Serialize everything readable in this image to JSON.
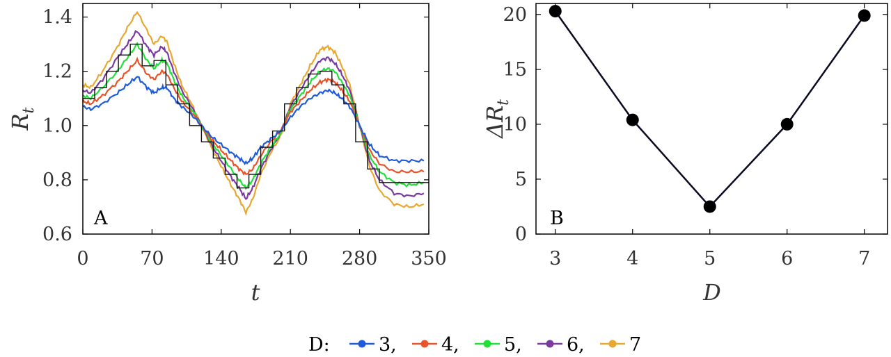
{
  "chart_data": [
    {
      "panel": "A",
      "type": "line",
      "xlabel": "t",
      "ylabel_main": "R",
      "ylabel_sub": "t",
      "xlim": [
        0,
        350
      ],
      "ylim": [
        0.6,
        1.45
      ],
      "xticks": [
        0,
        70,
        140,
        210,
        280,
        350
      ],
      "xtick_labels": [
        "0",
        "70",
        "140",
        "210",
        "280",
        "350"
      ],
      "yticks": [
        0.6,
        0.8,
        1.0,
        1.2,
        1.4
      ],
      "ytick_labels": [
        "0.6",
        "0.8",
        "1.0",
        "1.2",
        "1.4"
      ],
      "grid": false,
      "x": [
        0,
        8,
        20,
        35,
        45,
        55,
        65,
        72,
        80,
        85,
        92,
        100,
        110,
        120,
        130,
        140,
        150,
        158,
        165,
        172,
        180,
        190,
        200,
        210,
        220,
        230,
        240,
        248,
        255,
        262,
        270,
        280,
        290,
        300,
        315,
        330,
        345
      ],
      "series": [
        {
          "name": "3",
          "color": "#1f5bd8",
          "values": [
            1.07,
            1.06,
            1.08,
            1.12,
            1.15,
            1.18,
            1.14,
            1.12,
            1.14,
            1.14,
            1.1,
            1.07,
            1.04,
            1.0,
            0.96,
            0.93,
            0.9,
            0.88,
            0.86,
            0.88,
            0.92,
            0.95,
            0.98,
            1.03,
            1.07,
            1.1,
            1.12,
            1.13,
            1.12,
            1.1,
            1.07,
            1.0,
            0.93,
            0.89,
            0.87,
            0.87,
            0.87
          ]
        },
        {
          "name": "4",
          "color": "#e8532a",
          "values": [
            1.09,
            1.08,
            1.11,
            1.16,
            1.2,
            1.24,
            1.19,
            1.17,
            1.2,
            1.19,
            1.14,
            1.09,
            1.05,
            1.0,
            0.95,
            0.91,
            0.87,
            0.84,
            0.82,
            0.84,
            0.89,
            0.94,
            0.98,
            1.05,
            1.09,
            1.13,
            1.16,
            1.17,
            1.16,
            1.13,
            1.09,
            1.0,
            0.91,
            0.86,
            0.83,
            0.83,
            0.83
          ]
        },
        {
          "name": "5",
          "color": "#22e03a",
          "values": [
            1.11,
            1.1,
            1.14,
            1.2,
            1.25,
            1.3,
            1.24,
            1.21,
            1.24,
            1.23,
            1.17,
            1.11,
            1.06,
            1.0,
            0.94,
            0.89,
            0.84,
            0.8,
            0.77,
            0.8,
            0.86,
            0.92,
            0.97,
            1.06,
            1.11,
            1.16,
            1.2,
            1.21,
            1.2,
            1.16,
            1.11,
            1.0,
            0.89,
            0.83,
            0.79,
            0.78,
            0.79
          ]
        },
        {
          "name": "6",
          "color": "#7b3aa0",
          "values": [
            1.13,
            1.12,
            1.17,
            1.25,
            1.3,
            1.35,
            1.29,
            1.26,
            1.29,
            1.27,
            1.2,
            1.13,
            1.07,
            1.0,
            0.93,
            0.87,
            0.81,
            0.77,
            0.73,
            0.77,
            0.84,
            0.91,
            0.97,
            1.07,
            1.13,
            1.19,
            1.24,
            1.25,
            1.23,
            1.19,
            1.13,
            1.0,
            0.87,
            0.8,
            0.75,
            0.74,
            0.75
          ]
        },
        {
          "name": "7",
          "color": "#e8a830",
          "values": [
            1.15,
            1.14,
            1.2,
            1.29,
            1.36,
            1.42,
            1.35,
            1.3,
            1.33,
            1.31,
            1.23,
            1.15,
            1.08,
            1.0,
            0.92,
            0.85,
            0.78,
            0.73,
            0.68,
            0.73,
            0.82,
            0.9,
            0.96,
            1.08,
            1.15,
            1.22,
            1.28,
            1.29,
            1.27,
            1.22,
            1.15,
            1.0,
            0.85,
            0.76,
            0.71,
            0.7,
            0.71
          ]
        }
      ],
      "reference_line": {
        "color": "#111111",
        "x": [
          0,
          12,
          12,
          24,
          24,
          36,
          36,
          48,
          48,
          60,
          60,
          72,
          72,
          84,
          84,
          96,
          96,
          108,
          108,
          120,
          120,
          132,
          132,
          144,
          144,
          156,
          156,
          168,
          168,
          180,
          180,
          192,
          192,
          204,
          204,
          216,
          216,
          228,
          228,
          240,
          240,
          252,
          252,
          264,
          264,
          276,
          276,
          288,
          288,
          300,
          300,
          350
        ],
        "values": [
          1.1,
          1.1,
          1.14,
          1.14,
          1.2,
          1.2,
          1.26,
          1.26,
          1.3,
          1.3,
          1.22,
          1.22,
          1.24,
          1.24,
          1.15,
          1.15,
          1.08,
          1.08,
          1.0,
          1.0,
          0.94,
          0.94,
          0.88,
          0.88,
          0.82,
          0.82,
          0.77,
          0.77,
          0.82,
          0.82,
          0.92,
          0.92,
          0.98,
          0.98,
          1.08,
          1.08,
          1.14,
          1.14,
          1.19,
          1.19,
          1.2,
          1.2,
          1.15,
          1.15,
          1.08,
          1.08,
          0.94,
          0.94,
          0.84,
          0.84,
          0.79,
          0.79
        ]
      }
    },
    {
      "panel": "B",
      "type": "line",
      "xlabel": "D",
      "ylabel_main": "ΔR",
      "ylabel_sub": "t",
      "xlim": [
        2.75,
        7.3
      ],
      "ylim": [
        0,
        21
      ],
      "xticks": [
        3,
        4,
        5,
        6,
        7
      ],
      "xtick_labels": [
        "3",
        "4",
        "5",
        "6",
        "7"
      ],
      "yticks": [
        0,
        5,
        10,
        15,
        20
      ],
      "ytick_labels": [
        "0",
        "5",
        "10",
        "15",
        "20"
      ],
      "grid": false,
      "x": [
        3,
        4,
        5,
        6,
        7
      ],
      "values": [
        20.3,
        10.4,
        2.5,
        10.0,
        19.9
      ],
      "color": "#000000"
    }
  ],
  "legend": {
    "title": "D:",
    "entries": [
      {
        "label": "3,",
        "color": "#1f5bd8"
      },
      {
        "label": "4,",
        "color": "#e8532a"
      },
      {
        "label": "5,",
        "color": "#22e03a"
      },
      {
        "label": "6,",
        "color": "#7b3aa0"
      },
      {
        "label": "7",
        "color": "#e8a830"
      }
    ]
  }
}
